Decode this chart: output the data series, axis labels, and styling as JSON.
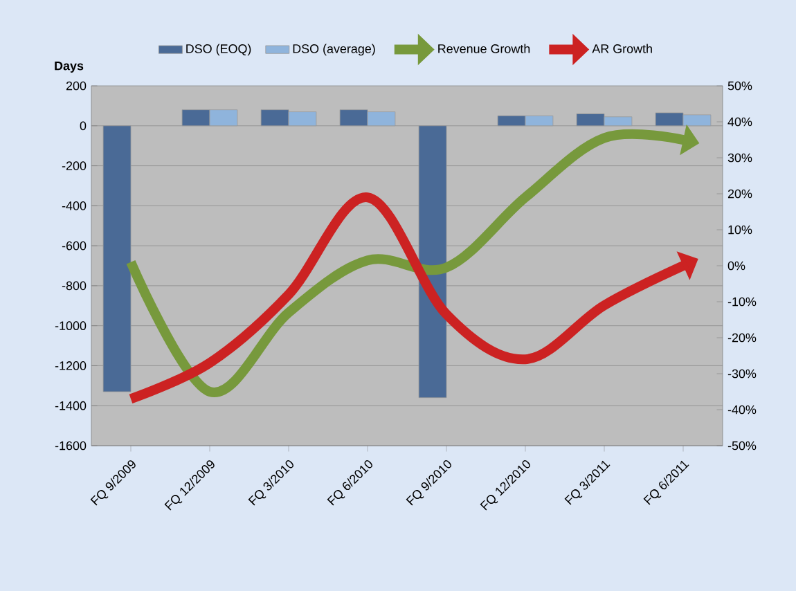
{
  "chart_data": {
    "type": "bar",
    "ylabel": "Days",
    "categories": [
      "FQ 9/2009",
      "FQ 12/2009",
      "FQ 3/2010",
      "FQ 6/2010",
      "FQ 9/2010",
      "FQ 12/2010",
      "FQ 3/2011",
      "FQ 6/2011"
    ],
    "series": [
      {
        "name": "DSO (EOQ)",
        "color": "#4a6a96",
        "values": [
          -1330,
          80,
          80,
          80,
          -1360,
          50,
          60,
          65
        ]
      },
      {
        "name": "DSO (average)",
        "color": "#8fb4dc",
        "values": [
          null,
          80,
          70,
          70,
          null,
          50,
          45,
          55
        ]
      },
      {
        "name": "Revenue Growth",
        "type": "line",
        "axis": "y2",
        "color": "#77993c",
        "values": [
          1,
          -35,
          -13,
          1.5,
          -0.5,
          19,
          35.5,
          35
        ]
      },
      {
        "name": "AR Growth",
        "type": "line",
        "axis": "y2",
        "color": "#cc2222",
        "values": [
          -37,
          -27,
          -8,
          19,
          -13.5,
          -26,
          -11,
          0
        ]
      }
    ],
    "ylim": [
      -1600,
      200
    ],
    "yticks": [
      -1600,
      -1400,
      -1200,
      -1000,
      -800,
      -600,
      -400,
      -200,
      0,
      200
    ],
    "y2lim": [
      -50,
      50
    ],
    "y2ticks": [
      {
        "value": -50,
        "label": "-50%"
      },
      {
        "value": -40,
        "label": "-40%"
      },
      {
        "value": -30,
        "label": "-30%"
      },
      {
        "value": -20,
        "label": "-20%"
      },
      {
        "value": -10,
        "label": "-10%"
      },
      {
        "value": 0,
        "label": "0%"
      },
      {
        "value": 10,
        "label": "10%"
      },
      {
        "value": 20,
        "label": "20%"
      },
      {
        "value": 30,
        "label": "30%"
      },
      {
        "value": 40,
        "label": "40%"
      },
      {
        "value": 50,
        "label": "50%"
      }
    ],
    "grid": "y",
    "legend": "top",
    "marker": "none"
  }
}
